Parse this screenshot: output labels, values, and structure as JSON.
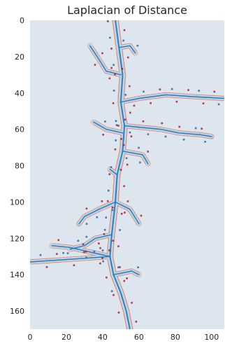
{
  "chart_data": {
    "type": "heatmap",
    "title": "Laplacian of Distance",
    "xlabel": "",
    "ylabel": "",
    "xlim": [
      0,
      107
    ],
    "ylim": [
      170,
      0
    ],
    "x_ticks": [
      0,
      20,
      40,
      60,
      80,
      100
    ],
    "y_ticks": [
      0,
      20,
      40,
      60,
      80,
      100,
      120,
      140,
      160
    ],
    "grid": false,
    "legend": "none",
    "colormap": "RdBu",
    "colors": {
      "background": "#dde6ee",
      "ridge": "#2b7bba",
      "ridge_light": "#a9cfe6",
      "positive_edge": "#e6a98c",
      "negative_edge": "#b2182b",
      "edge_blue": "#2166ac"
    },
    "structure": {
      "main_trunk": [
        [
          47,
          0
        ],
        [
          49,
          15
        ],
        [
          51,
          30
        ],
        [
          50,
          45
        ],
        [
          52,
          58
        ],
        [
          51,
          72
        ],
        [
          48,
          85
        ],
        [
          47,
          100
        ],
        [
          45,
          118
        ],
        [
          44,
          130
        ],
        [
          46,
          140
        ],
        [
          50,
          150
        ],
        [
          53,
          160
        ],
        [
          55,
          170
        ]
      ],
      "branches": [
        [
          [
            50,
            45
          ],
          [
            60,
            43
          ],
          [
            75,
            41
          ],
          [
            90,
            42
          ],
          [
            107,
            43
          ]
        ],
        [
          [
            52,
            58
          ],
          [
            62,
            59
          ],
          [
            72,
            60
          ],
          [
            82,
            62
          ],
          [
            94,
            63
          ],
          [
            100,
            64
          ]
        ],
        [
          [
            50,
            30
          ],
          [
            42,
            28
          ],
          [
            37,
            20
          ],
          [
            33,
            14
          ]
        ],
        [
          [
            49,
            15
          ],
          [
            55,
            14
          ],
          [
            58,
            18
          ]
        ],
        [
          [
            51,
            62
          ],
          [
            42,
            60
          ],
          [
            35,
            56
          ]
        ],
        [
          [
            48,
            85
          ],
          [
            44,
            82
          ]
        ],
        [
          [
            47,
            100
          ],
          [
            38,
            104
          ],
          [
            30,
            108
          ],
          [
            27,
            112
          ]
        ],
        [
          [
            45,
            118
          ],
          [
            36,
            120
          ],
          [
            30,
            124
          ],
          [
            22,
            126
          ]
        ],
        [
          [
            44,
            130
          ],
          [
            30,
            131
          ],
          [
            15,
            132
          ],
          [
            0,
            133
          ]
        ],
        [
          [
            44,
            130
          ],
          [
            35,
            128
          ],
          [
            22,
            125
          ],
          [
            12,
            124
          ]
        ],
        [
          [
            51,
            72
          ],
          [
            62,
            74
          ],
          [
            65,
            79
          ]
        ],
        [
          [
            47,
            100
          ],
          [
            55,
            104
          ],
          [
            60,
            112
          ]
        ],
        [
          [
            46,
            140
          ],
          [
            56,
            138
          ],
          [
            60,
            140
          ]
        ]
      ]
    }
  }
}
